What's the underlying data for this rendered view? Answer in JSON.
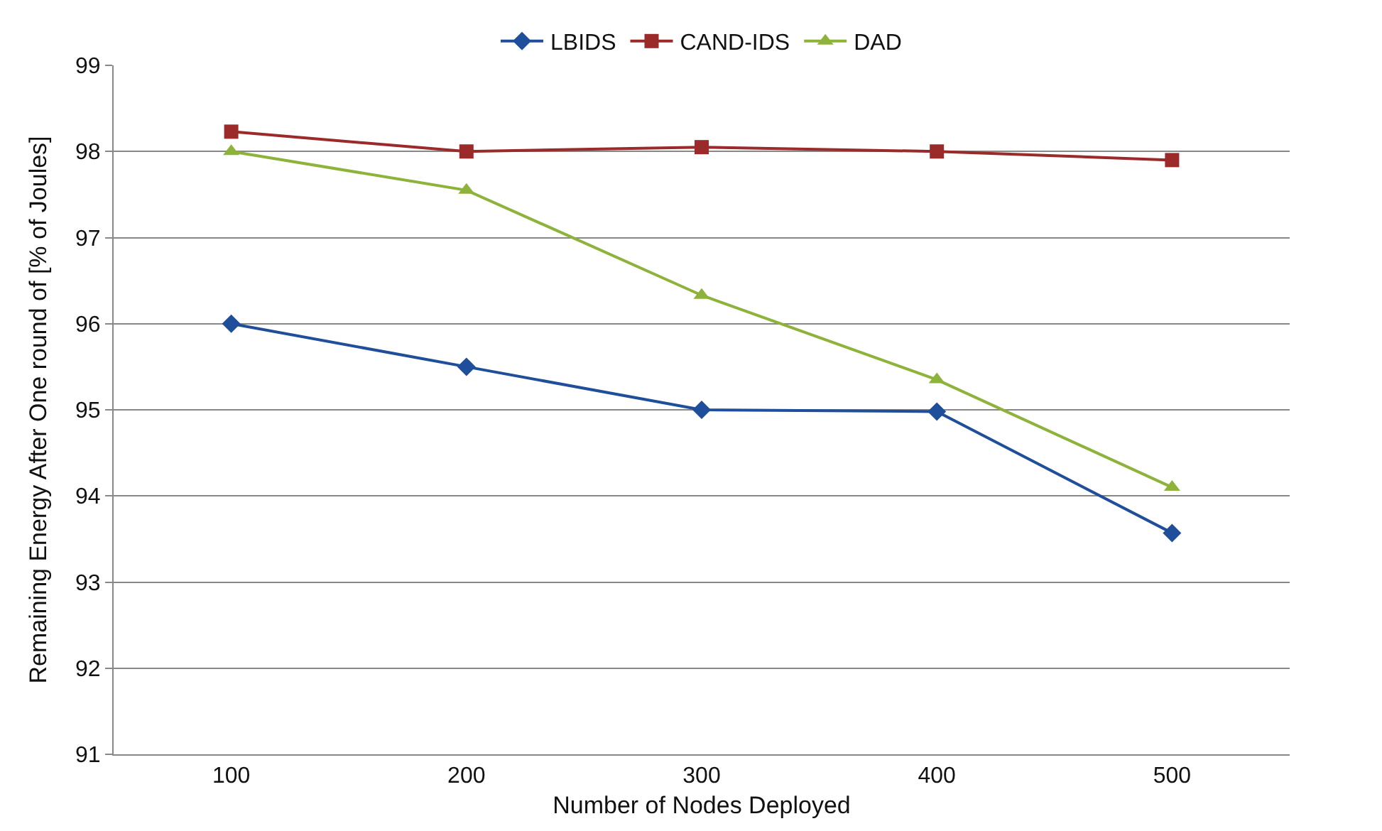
{
  "chart_data": {
    "type": "line",
    "xlabel": "Number of Nodes Deployed",
    "ylabel": "Remaining Energy After One round of [% of Joules]",
    "categories": [
      "100",
      "200",
      "300",
      "400",
      "500"
    ],
    "series": [
      {
        "name": "LBIDS",
        "color": "#1f4e9a",
        "marker": "diamond",
        "values": [
          96.0,
          95.5,
          95.0,
          94.98,
          93.57
        ]
      },
      {
        "name": "CAND-IDS",
        "color": "#9b2a2a",
        "marker": "square",
        "values": [
          98.23,
          98.0,
          98.05,
          98.0,
          97.9
        ]
      },
      {
        "name": "DAD",
        "color": "#8db33a",
        "marker": "triangle",
        "values": [
          98.0,
          97.55,
          96.33,
          95.35,
          94.1
        ]
      }
    ],
    "ylim": [
      91,
      99
    ],
    "yticks": [
      91,
      92,
      93,
      94,
      95,
      96,
      97,
      98,
      99
    ],
    "grid": "y",
    "legend": "top",
    "line_style": "solid"
  }
}
